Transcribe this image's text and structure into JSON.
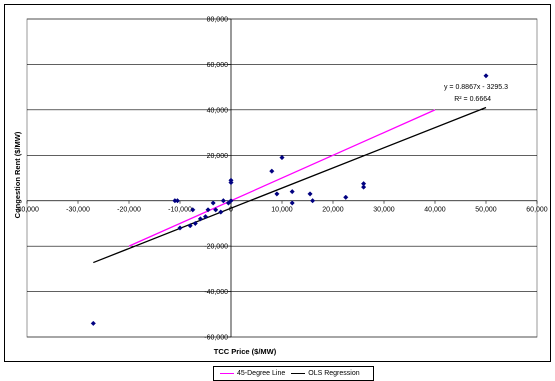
{
  "chart_data": {
    "type": "scatter",
    "title": "",
    "xlabel": "TCC Price ($/MW)",
    "ylabel": "Congestion Rent ($/MW)",
    "xlim": [
      -40000,
      60000
    ],
    "ylim": [
      -60000,
      80000
    ],
    "x_ticks": [
      -40000,
      -30000,
      -20000,
      -10000,
      0,
      10000,
      20000,
      30000,
      40000,
      50000,
      60000
    ],
    "y_ticks": [
      -60000,
      -40000,
      -20000,
      0,
      20000,
      40000,
      60000,
      80000
    ],
    "x_tick_labels": [
      "-40,000",
      "-30,000",
      "-20,000",
      "-10,000",
      "0",
      "10,000",
      "20,000",
      "30,000",
      "40,000",
      "50,000",
      "60,000"
    ],
    "y_tick_labels": [
      "-60,000",
      "-40,000",
      "-20,000",
      "0",
      "20,000",
      "40,000",
      "60,000",
      "80,000"
    ],
    "grid": "horizontal",
    "point_color": "#000080",
    "points": [
      {
        "x": 50000,
        "y": 55000
      },
      {
        "x": 26000,
        "y": 7500
      },
      {
        "x": 26000,
        "y": 6000
      },
      {
        "x": 22500,
        "y": 1500
      },
      {
        "x": 15500,
        "y": 3000
      },
      {
        "x": 16000,
        "y": 0
      },
      {
        "x": 12000,
        "y": 4000
      },
      {
        "x": 12000,
        "y": -1000
      },
      {
        "x": 10000,
        "y": 19000
      },
      {
        "x": 9000,
        "y": 3000
      },
      {
        "x": 8000,
        "y": 13000
      },
      {
        "x": 0,
        "y": 9000
      },
      {
        "x": 0,
        "y": 8000
      },
      {
        "x": 0,
        "y": 0
      },
      {
        "x": -500,
        "y": -1000
      },
      {
        "x": -1500,
        "y": 0
      },
      {
        "x": -2000,
        "y": -5000
      },
      {
        "x": -3000,
        "y": -4000
      },
      {
        "x": -3500,
        "y": -1000
      },
      {
        "x": -4500,
        "y": -4000
      },
      {
        "x": -5000,
        "y": -7000
      },
      {
        "x": -6000,
        "y": -8000
      },
      {
        "x": -7000,
        "y": -10000
      },
      {
        "x": -7500,
        "y": -4000
      },
      {
        "x": -8000,
        "y": -11000
      },
      {
        "x": -10000,
        "y": -12000
      },
      {
        "x": -10500,
        "y": 0
      },
      {
        "x": -11000,
        "y": 0
      },
      {
        "x": -27000,
        "y": -54000
      }
    ],
    "series": [
      {
        "name": "45-Degree Line",
        "type": "line",
        "color": "#ff00ff",
        "x": [
          -20000,
          40000
        ],
        "y": [
          -20000,
          40000
        ]
      },
      {
        "name": "OLS Regression",
        "type": "line",
        "color": "#000000",
        "x": [
          -27000,
          50000
        ],
        "y": [
          -27236,
          41040
        ]
      }
    ],
    "annotations": [
      "y = 0.8867x - 3295.3",
      "R² = 0.6664"
    ],
    "legend_position": "bottom"
  }
}
